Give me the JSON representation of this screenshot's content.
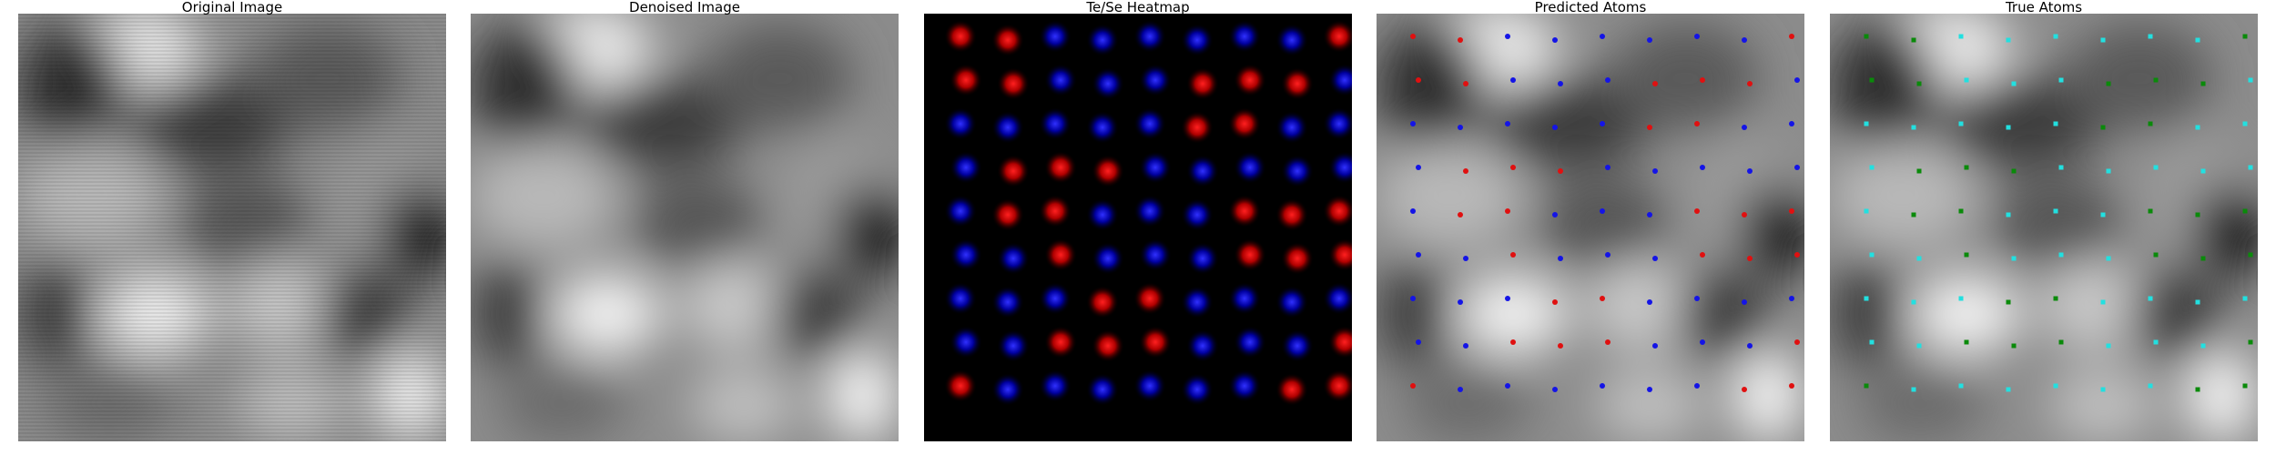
{
  "figure": {
    "panels": [
      {
        "id": "original",
        "title": "Original Image"
      },
      {
        "id": "denoised",
        "title": "Denoised Image"
      },
      {
        "id": "heatmap",
        "title": "Te/Se Heatmap"
      },
      {
        "id": "predicted",
        "title": "Predicted Atoms"
      },
      {
        "id": "true",
        "title": "True Atoms"
      }
    ],
    "colors": {
      "te_heat": "#ff1a1a",
      "se_heat": "#2a2aff",
      "predicted_te": "#e01010",
      "predicted_se": "#1414e6",
      "true_cyan": "#22e0e0",
      "true_green": "#0a8a0a",
      "heatmap_background": "#000000"
    }
  }
}
